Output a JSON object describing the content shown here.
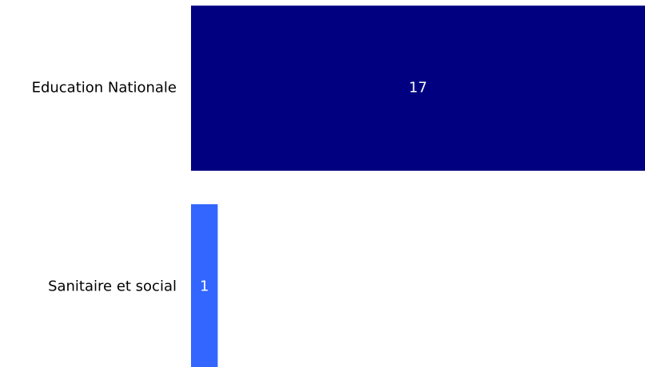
{
  "chart_data": {
    "type": "bar",
    "orientation": "horizontal",
    "categories": [
      "Education Nationale",
      "Sanitaire et social"
    ],
    "values": [
      17,
      1
    ],
    "data_labels": [
      "17",
      "1"
    ],
    "colors": [
      "#000080",
      "#3366ff"
    ],
    "label_color": "#ffffff",
    "xlim": [
      0,
      17
    ],
    "grid": false,
    "legend": false
  }
}
